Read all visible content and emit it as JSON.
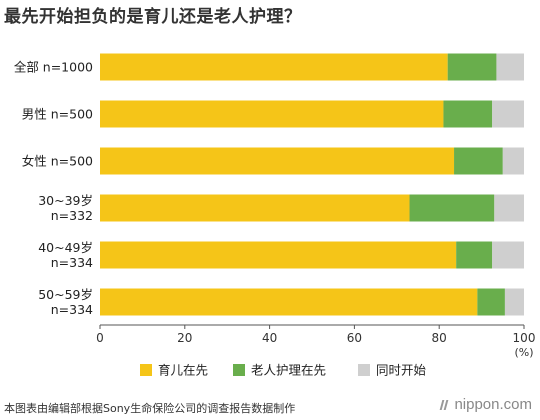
{
  "title": "最先开始担负的是育儿还是老人护理？",
  "footer": "本图表由编辑部根据Sony生命保险公司的调查报告数据制作",
  "brand": "nippon.com",
  "colors": {
    "childcare": "#F5C518",
    "eldercare": "#69AE4C",
    "same_time": "#CFCFCF"
  },
  "chart_data": {
    "type": "bar",
    "orientation": "horizontal",
    "stacked": true,
    "categories": [
      [
        "全部 n=1000"
      ],
      [
        "男性 n=500"
      ],
      [
        "女性 n=500"
      ],
      [
        "30~39岁",
        "n=332"
      ],
      [
        "40~49岁",
        "n=334"
      ],
      [
        "50~59岁",
        "n=334"
      ]
    ],
    "series": [
      {
        "name": "育儿在先",
        "values": [
          82,
          81,
          83.5,
          73,
          84,
          89
        ]
      },
      {
        "name": "老人护理在先",
        "values": [
          11.5,
          11.5,
          11.5,
          20,
          8.5,
          6.5
        ]
      },
      {
        "name": "同时开始",
        "values": [
          6.5,
          7.5,
          5,
          7,
          7.5,
          4.5
        ]
      }
    ],
    "xlim": [
      0,
      100
    ],
    "xticks": [
      "0",
      "20",
      "40",
      "60",
      "80",
      "100"
    ],
    "xunit": "(%)",
    "legend_position": "bottom"
  }
}
